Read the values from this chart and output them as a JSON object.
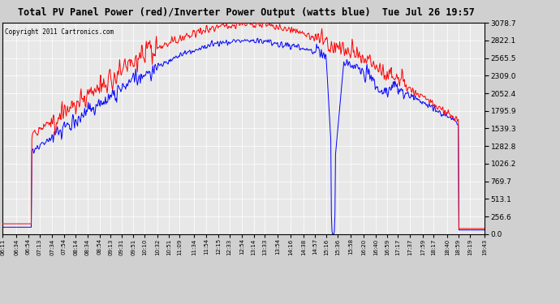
{
  "title": "Total PV Panel Power (red)/Inverter Power Output (watts blue)  Tue Jul 26 19:57",
  "copyright": "Copyright 2011 Cartronics.com",
  "y_ticks": [
    0.0,
    256.6,
    513.1,
    769.7,
    1026.2,
    1282.8,
    1539.3,
    1795.9,
    2052.4,
    2309.0,
    2565.5,
    2822.1,
    3078.7
  ],
  "y_max": 3078.7,
  "x_labels": [
    "06:11",
    "06:34",
    "06:54",
    "07:13",
    "07:34",
    "07:54",
    "08:14",
    "08:34",
    "08:54",
    "09:13",
    "09:31",
    "09:51",
    "10:10",
    "10:32",
    "10:51",
    "11:09",
    "11:34",
    "11:54",
    "12:15",
    "12:33",
    "12:54",
    "13:14",
    "13:33",
    "13:54",
    "14:16",
    "14:38",
    "14:57",
    "15:16",
    "15:36",
    "15:58",
    "16:20",
    "16:40",
    "16:59",
    "17:17",
    "17:37",
    "17:59",
    "18:17",
    "18:40",
    "18:59",
    "19:19",
    "19:43"
  ],
  "bg_color": "#d0d0d0",
  "plot_bg": "#e8e8e8",
  "grid_color": "#ffffff",
  "red_color": "#ff0000",
  "blue_color": "#0000ff",
  "title_color": "#000000",
  "copyright_color": "#000000"
}
